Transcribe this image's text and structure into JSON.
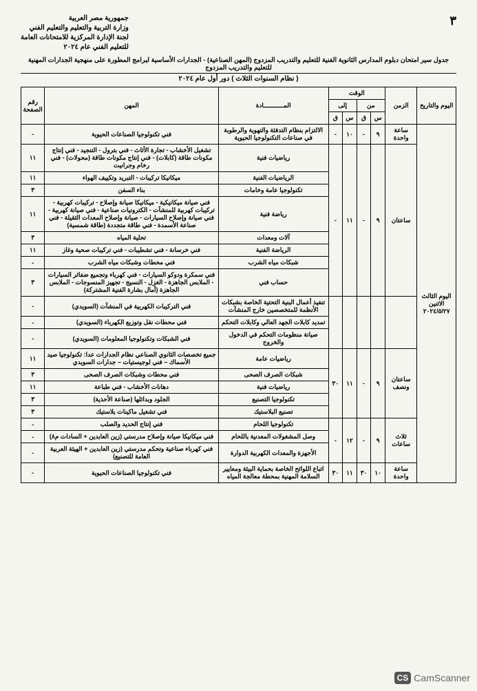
{
  "header": {
    "line1": "جمهورية مصر العربية",
    "line2": "وزارة التربية والتعليم والتعليم الفني",
    "line3": "لجنة الإدارة المركزية للامتحانات العامة",
    "line4": "للتعليم الفني عام ٢٠٢٤",
    "page": "٣"
  },
  "title": "جدول سير امتحان دبلوم المدارس الثانوية الفنية للتعليم والتدريب المزدوج (المهن الصناعية) - الجدارات الأساسية لبرامج المطورة على منهجية الجدارات المهنية للتعليم والتدريب المزدوج",
  "subtitle": "( نظام السنوات الثلاث ) دور أول عام ٢٠٢٤",
  "thead": {
    "day": "اليوم والتاريخ",
    "duration": "الزمن",
    "time": "الوقت",
    "from": "من",
    "to": "إلى",
    "h": "س",
    "m": "ق",
    "subject": "المـــــــــــادة",
    "prof": "المهن",
    "num": "رقم الصفحة"
  },
  "day_label": "اليوم الثالث الاثنين ٢٠٢٤/٥/٢٧",
  "rows": [
    {
      "dur": "ساعة واحدة",
      "from_h": "٩",
      "from_m": "-",
      "to_h": "١٠",
      "to_m": "-",
      "subj": "الالتزام بنظام التدفئة والتهوية والرطوبة في صناعات التكنولوجيا الحيوية",
      "prof": "فني تكنولوجيا الصناعات الحيوية",
      "num": "-"
    },
    {
      "dur": "ساعتان",
      "from_h": "٩",
      "from_m": "-",
      "to_h": "١١",
      "to_m": "-",
      "subj": "رياضيات فنية",
      "prof": "تشغيل الأخشاب - تجارة الأثاث - فني بترول - التنجيد - فني إنتاج مكونات طاقة (كابلات) - فني إنتاج مكونات طاقة (محولات) - فني رخام وجرانيت",
      "num": "١١",
      "span": 8
    },
    {
      "subj": "الرياضيات الفنية",
      "prof": "ميكانيكا تركيبات - التبريد وتكييف الهواء",
      "num": "١١"
    },
    {
      "subj": "تكنولوجيا عامة وخامات",
      "prof": "بناء السفن",
      "num": "٣"
    },
    {
      "subj": "رياضة فنية",
      "prof": "فني صيانة ميكانيكية - ميكانيكا صيانة وإصلاح - تركيبات كهربية - تركيبات كهربية للمنشآت - الكترونيات صناعية - فني صيانة كهربية - فني صيانة وإصلاح السيارات - صيانة وإصلاح المعدات الثقيلة - فني صناعة الأسمدة - فني طاقة متجددة (طاقة شمسية)",
      "num": "١١"
    },
    {
      "subj": "آلات ومعدات",
      "prof": "تحلية المياه",
      "num": "٣"
    },
    {
      "subj": "الرياضة الفنية",
      "prof": "فني خرسانة - فني تشطيبات - فني تركيبات صحية وغاز",
      "num": "١١"
    },
    {
      "subj": "شبكات مياه الشرب",
      "prof": "فني محطات وشبكات مياه الشرب",
      "num": "-"
    },
    {
      "subj": "حساب فني",
      "prof": "فني سمكرة ودوكو السيارات - فني كهرباء وتجميع ضفائر السيارات - الملابس الجاهزة - الغزل - النسيج - تجهيز المنسوجات - الملابس الجاهزة (أمال بشارة الفنية المشتركة)",
      "num": "٣"
    },
    {
      "subj": "تنفيذ أعمال البنية التحتية الخاصة بشبكات الأنظمة للمتخصصين خارج المنشآت",
      "prof": "فني التركيبات الكهربية في المنشآت (السويدي)",
      "num": "-",
      "nosub": true
    },
    {
      "subj": "تمديد كابلات الجهد العالي وكابلات التحكم",
      "prof": "فني محطات نقل وتوزيع الكهرباء (السويدي)",
      "num": "-",
      "nosub": true
    },
    {
      "subj": "صيانة منظومات التحكم في الدخول والخروج",
      "prof": "فني الشبكات وتكنولوجيا المعلومات (السويدي)",
      "num": "-",
      "nosub": true
    },
    {
      "dur": "ساعتان ونصف",
      "from_h": "٩",
      "from_m": "-",
      "to_h": "١١",
      "to_m": "٣٠",
      "subj": "رياضيات عامة",
      "prof": "جميع تخصصات الثانوي الصناعي نظام الجدارات عدا: تكنولوجيا صيد الأسماك – فني لوجيستيات – جدارات السويدي",
      "num": "١١",
      "span": 5
    },
    {
      "subj": "شبكات الصرف الصحى",
      "prof": "فني محطات وشبكات الصرف الصحى",
      "num": "٣"
    },
    {
      "subj": "رياضيات فنية",
      "prof": "دهانات الأخشاب - فني طباعة",
      "num": "١١"
    },
    {
      "subj": "تكنولوجيا التصنيع",
      "prof": "الجلود وبدائلها (صناعة الأحذية)",
      "num": "٣"
    },
    {
      "subj": "تصنيع البلاستيك",
      "prof": "فني تشغيل ماكينات بلاستيك",
      "num": "٣"
    },
    {
      "dur": "ثلاث ساعات",
      "from_h": "٩",
      "from_m": "-",
      "to_h": "١٢",
      "to_m": "-",
      "subj": "تكنولوجيا اللحام",
      "prof": "فني إنتاج الحديد والصلب",
      "num": "-",
      "span": 3
    },
    {
      "subj": "وصل المشغولات المعدنية باللحام",
      "prof": "فني ميكانيكا صيانة وإصلاح مدرستي (زين العابدين + السادات م٨)",
      "num": "-"
    },
    {
      "subj": "الأجهزة والمعدات الكهربية الدوارة",
      "prof": "فني كهرباء صناعية وتحكم مدرستي (زين العابدين + الهيئة العربية العامة للتصنيع)",
      "num": "-"
    },
    {
      "dur": "ساعة واحدة",
      "from_h": "١٠",
      "from_m": "٣٠",
      "to_h": "١١",
      "to_m": "٣٠",
      "subj": "اتباع اللوائح الخاصة بحماية البيئة ومعايير السلامة المهنية بمحطة معالجة المياه",
      "prof": "فني تكنولوجيا الصناعات الحيوية",
      "num": "-"
    }
  ],
  "camscan": {
    "badge": "CS",
    "label": "CamScanner"
  }
}
